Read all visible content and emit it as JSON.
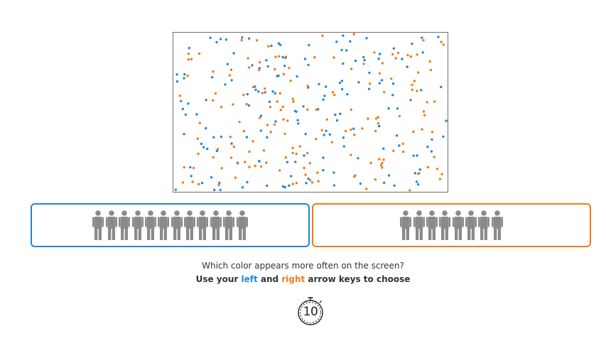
{
  "colors": {
    "left": "#1f87d8",
    "right": "#f07a17",
    "person": "#8a8a8a",
    "frame": "#6f6f6f"
  },
  "choices": {
    "left": {
      "people_count": 12,
      "icon": "person-icon"
    },
    "right": {
      "people_count": 8,
      "icon": "person-icon"
    }
  },
  "prompt": {
    "question": "Which color appears more often on the screen?",
    "instruction_prefix": "Use your ",
    "left_word": "left",
    "middle": " and ",
    "right_word": "right",
    "instruction_suffix": " arrow keys to choose"
  },
  "timer": {
    "value": "10",
    "icon": "stopwatch-icon"
  }
}
